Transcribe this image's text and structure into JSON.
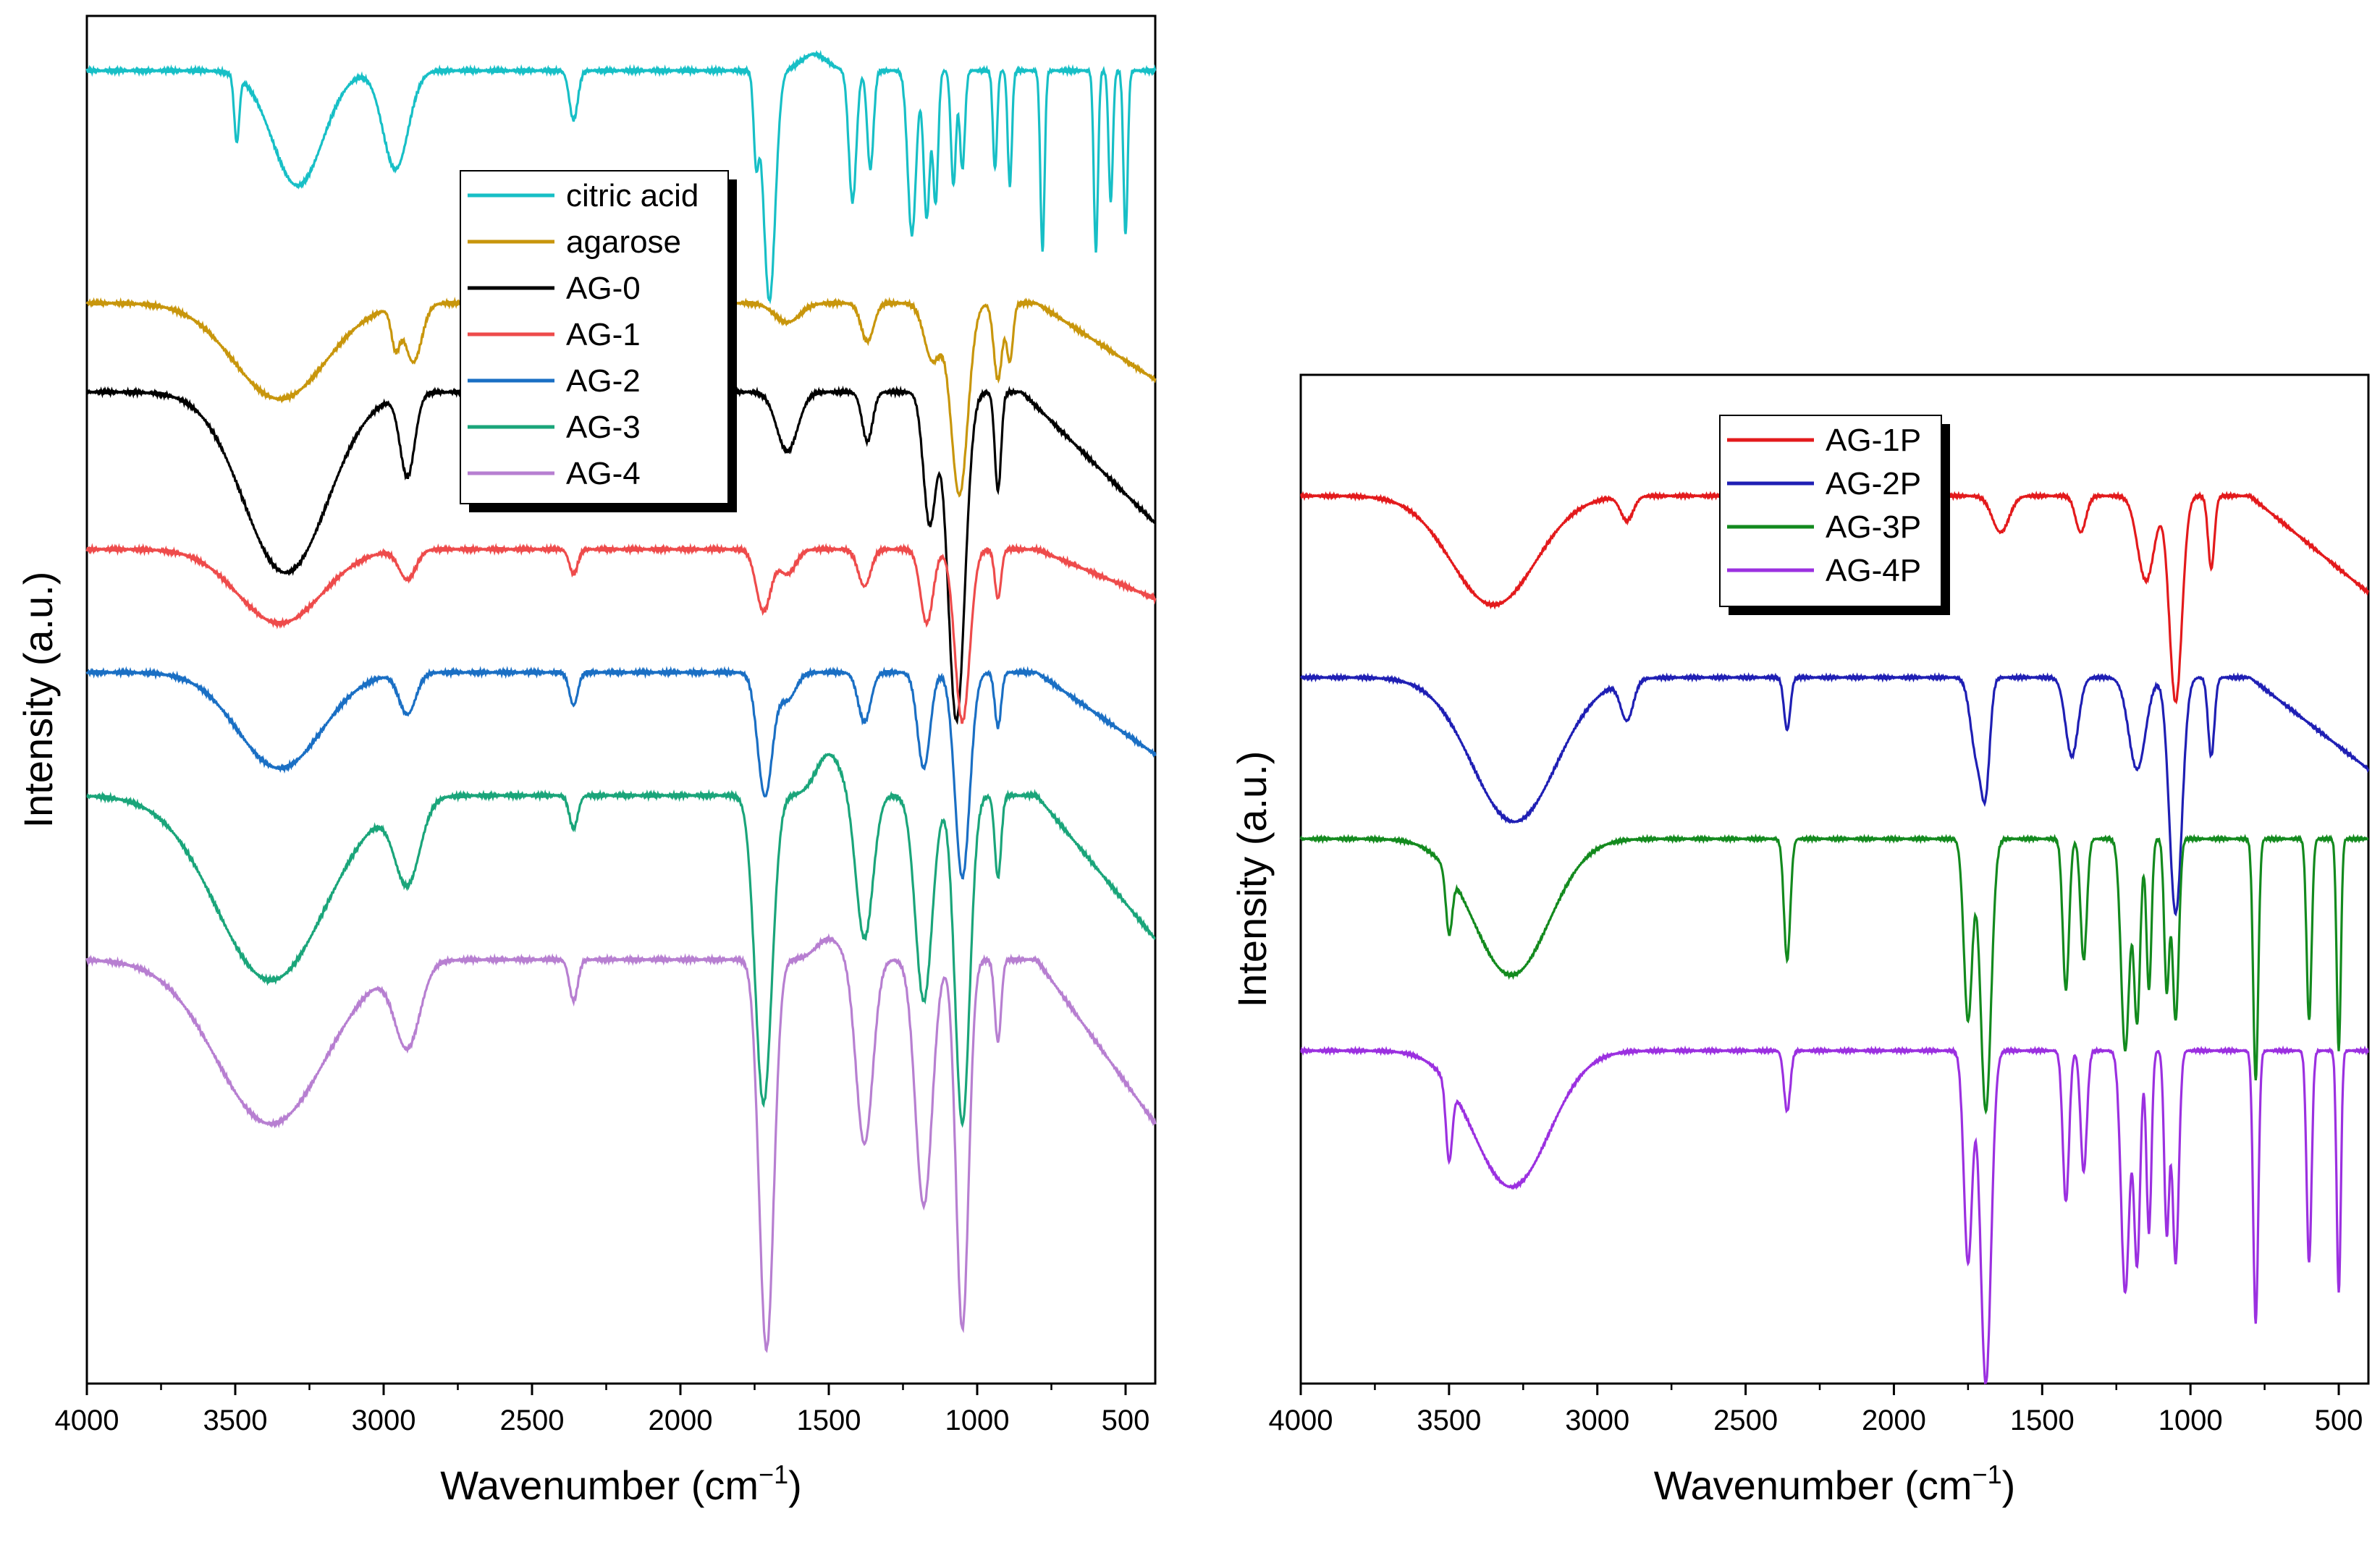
{
  "chart_data": [
    {
      "type": "line",
      "title": "",
      "xlabel": "Wavenumber (cm",
      "xlabel_sup": "−1",
      "xlabel_end": ")",
      "ylabel": "Intensity (a.u.)",
      "xlim": [
        4000,
        400
      ],
      "ylim": [
        0,
        100
      ],
      "xticks": [
        4000,
        3500,
        3000,
        2500,
        2000,
        1500,
        1000,
        500
      ],
      "legend_position": "top-center",
      "series": [
        {
          "name": "citric acid",
          "color": "#17bfc6",
          "baseline": 96,
          "amp": 12,
          "profile": "citric"
        },
        {
          "name": "agarose",
          "color": "#c8960c",
          "baseline": 79,
          "amp": 14,
          "profile": "agarose"
        },
        {
          "name": "AG-0",
          "color": "#000000",
          "baseline": 72.5,
          "amp": 24,
          "profile": "ag0"
        },
        {
          "name": "AG-1",
          "color": "#ee4b4b",
          "baseline": 61,
          "amp": 18,
          "profile": "ag1"
        },
        {
          "name": "AG-2",
          "color": "#1a6fc4",
          "baseline": 52,
          "amp": 20,
          "profile": "ag2"
        },
        {
          "name": "AG-3",
          "color": "#1aa57a",
          "baseline": 43,
          "amp": 30,
          "profile": "ag3"
        },
        {
          "name": "AG-4",
          "color": "#b77fd1",
          "baseline": 31,
          "amp": 30,
          "profile": "ag4"
        }
      ]
    },
    {
      "type": "line",
      "title": "",
      "xlabel": "Wavenumber (cm",
      "xlabel_sup": "−1",
      "xlabel_end": ")",
      "ylabel": "Intensity (a.u.)",
      "xlim": [
        4000,
        400
      ],
      "ylim": [
        0,
        100
      ],
      "xticks": [
        4000,
        3500,
        3000,
        2500,
        2000,
        1500,
        1000,
        500
      ],
      "legend_position": "top-center",
      "series": [
        {
          "name": "AG-1P",
          "color": "#e31a1c",
          "baseline": 88,
          "amp": 24,
          "profile": "ag1p"
        },
        {
          "name": "AG-2P",
          "color": "#1f1fb4",
          "baseline": 70,
          "amp": 26,
          "profile": "ag2p"
        },
        {
          "name": "AG-3P",
          "color": "#138a1e",
          "baseline": 54,
          "amp": 30,
          "profile": "ag3p"
        },
        {
          "name": "AG-4P",
          "color": "#9b30e0",
          "baseline": 33,
          "amp": 30,
          "profile": "ag4p"
        }
      ]
    }
  ]
}
